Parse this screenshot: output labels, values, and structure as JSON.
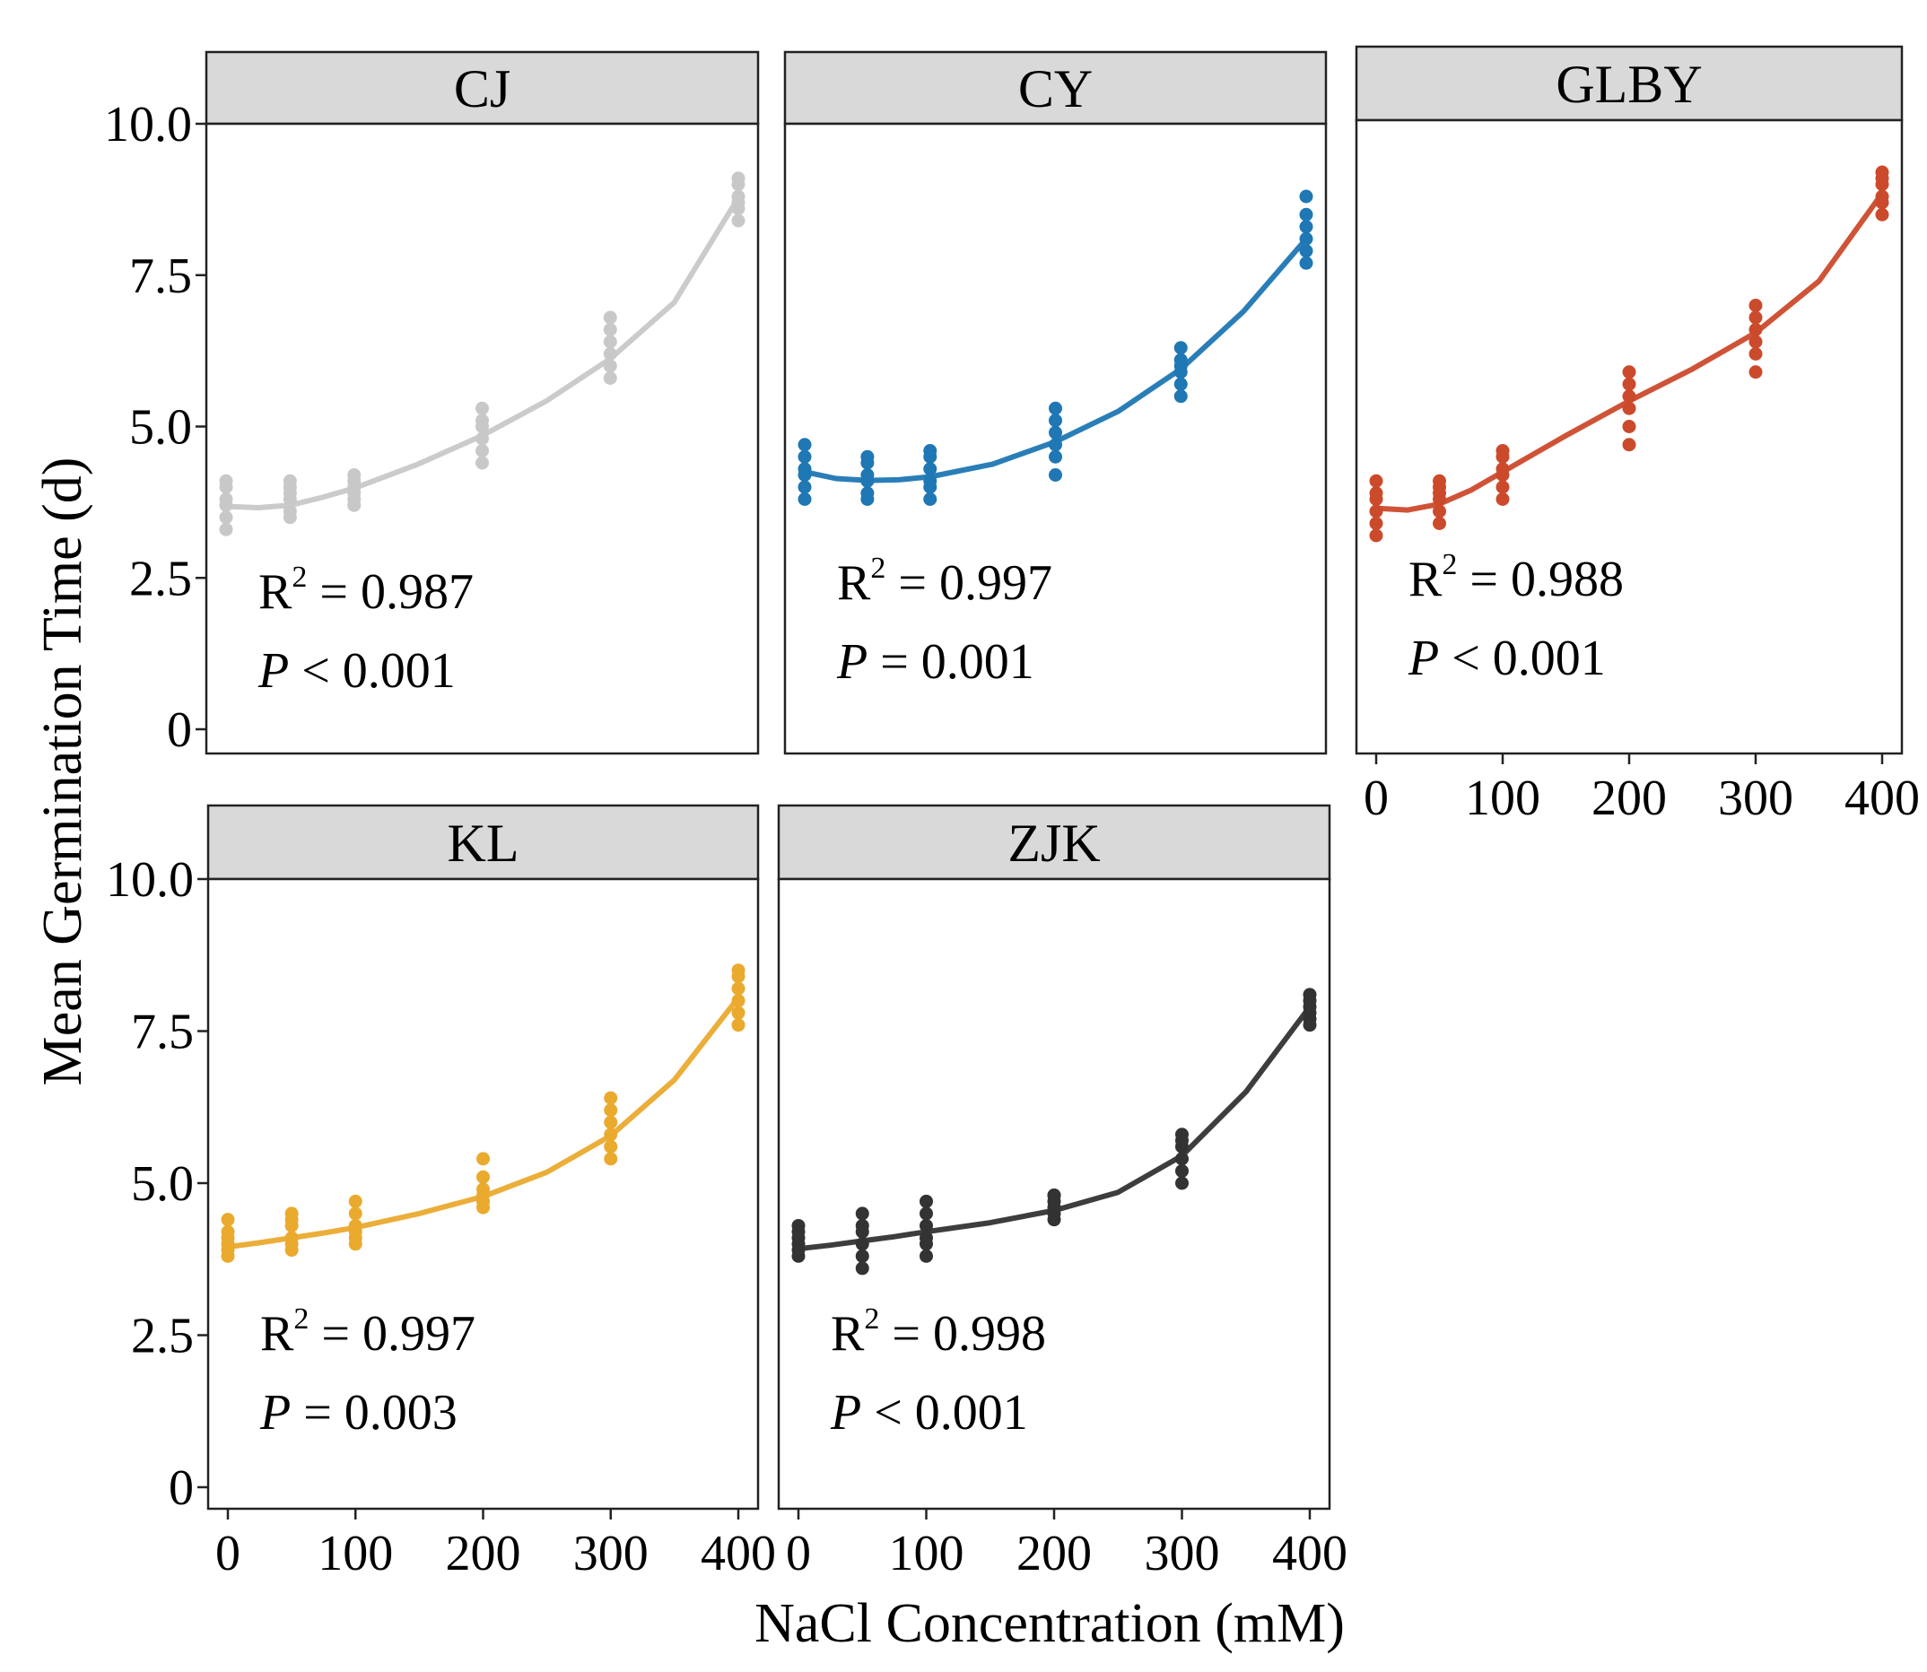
{
  "figure": {
    "xlabel": "NaCl Concentration (mM)",
    "ylabel": "Mean Germination Time (d)"
  },
  "chart_data": [
    {
      "type": "scatter",
      "panel": "CJ",
      "title": "CJ",
      "color": "#c8c8c8",
      "xlim": [
        0,
        400
      ],
      "ylim": [
        0,
        10
      ],
      "xticks": [
        0,
        100,
        200,
        300,
        400
      ],
      "yticks": [
        0,
        2.5,
        5.0,
        7.5,
        10.0
      ],
      "ytick_labels": [
        "0",
        "2.5",
        "5.0",
        "7.5",
        "10.0"
      ],
      "x": [
        0,
        50,
        100,
        200,
        300,
        400
      ],
      "points": [
        [
          3.3,
          3.5,
          3.7,
          3.8,
          4.0,
          4.1
        ],
        [
          3.5,
          3.6,
          3.8,
          3.9,
          4.0,
          4.1
        ],
        [
          3.7,
          3.8,
          3.9,
          4.0,
          4.1,
          4.2
        ],
        [
          4.4,
          4.6,
          4.8,
          5.0,
          5.1,
          5.3
        ],
        [
          5.8,
          6.0,
          6.2,
          6.4,
          6.6,
          6.8
        ],
        [
          8.4,
          8.6,
          8.7,
          8.8,
          9.0,
          9.1
        ]
      ],
      "fit": [
        [
          0,
          3.68
        ],
        [
          25,
          3.66
        ],
        [
          50,
          3.7
        ],
        [
          75,
          3.83
        ],
        [
          100,
          3.98
        ],
        [
          150,
          4.38
        ],
        [
          200,
          4.85
        ],
        [
          250,
          5.42
        ],
        [
          300,
          6.12
        ],
        [
          350,
          7.05
        ],
        [
          400,
          8.78
        ]
      ],
      "r2_label": "R",
      "r2_value": "= 0.987",
      "p_label": "P",
      "p_value": "< 0.001"
    },
    {
      "type": "scatter",
      "panel": "CY",
      "title": "CY",
      "color": "#1f77b4",
      "xlim": [
        0,
        400
      ],
      "ylim": [
        0,
        10
      ],
      "xticks": [
        0,
        100,
        200,
        300,
        400
      ],
      "x": [
        0,
        50,
        100,
        200,
        300,
        400
      ],
      "points": [
        [
          3.8,
          4.0,
          4.2,
          4.3,
          4.5,
          4.7
        ],
        [
          3.8,
          3.9,
          4.1,
          4.2,
          4.4,
          4.5
        ],
        [
          3.8,
          4.0,
          4.1,
          4.3,
          4.5,
          4.6
        ],
        [
          4.2,
          4.5,
          4.7,
          4.9,
          5.1,
          5.3
        ],
        [
          5.5,
          5.7,
          5.9,
          6.0,
          6.1,
          6.3
        ],
        [
          7.7,
          7.9,
          8.1,
          8.3,
          8.5,
          8.8
        ]
      ],
      "fit": [
        [
          0,
          4.25
        ],
        [
          25,
          4.14
        ],
        [
          50,
          4.11
        ],
        [
          75,
          4.12
        ],
        [
          100,
          4.17
        ],
        [
          150,
          4.38
        ],
        [
          200,
          4.75
        ],
        [
          250,
          5.25
        ],
        [
          300,
          5.95
        ],
        [
          350,
          6.9
        ],
        [
          400,
          8.1
        ]
      ],
      "r2_label": "R",
      "r2_value": "= 0.997",
      "p_label": "P",
      "p_value": "= 0.001"
    },
    {
      "type": "scatter",
      "panel": "GLBY",
      "title": "GLBY",
      "color": "#cc4a2c",
      "xlim": [
        0,
        400
      ],
      "ylim": [
        0,
        10
      ],
      "xticks": [
        0,
        100,
        200,
        300,
        400
      ],
      "xtick_labels": [
        "0",
        "100",
        "200",
        "300",
        "400"
      ],
      "x": [
        0,
        50,
        100,
        200,
        300,
        400
      ],
      "points": [
        [
          3.2,
          3.4,
          3.6,
          3.8,
          3.9,
          4.1
        ],
        [
          3.4,
          3.6,
          3.8,
          3.9,
          4.0,
          4.1
        ],
        [
          3.8,
          4.0,
          4.2,
          4.3,
          4.5,
          4.6
        ],
        [
          4.7,
          5.0,
          5.3,
          5.5,
          5.7,
          5.9
        ],
        [
          5.9,
          6.2,
          6.4,
          6.6,
          6.8,
          7.0
        ],
        [
          8.5,
          8.7,
          8.8,
          9.0,
          9.1,
          9.2
        ]
      ],
      "fit": [
        [
          0,
          3.65
        ],
        [
          25,
          3.62
        ],
        [
          50,
          3.72
        ],
        [
          75,
          3.95
        ],
        [
          100,
          4.25
        ],
        [
          150,
          4.85
        ],
        [
          200,
          5.42
        ],
        [
          250,
          5.95
        ],
        [
          300,
          6.55
        ],
        [
          350,
          7.4
        ],
        [
          400,
          8.85
        ]
      ],
      "r2_label": "R",
      "r2_value": "= 0.988",
      "p_label": "P",
      "p_value": "< 0.001"
    },
    {
      "type": "scatter",
      "panel": "KL",
      "title": "KL",
      "color": "#eaaa2e",
      "xlim": [
        0,
        400
      ],
      "ylim": [
        0,
        10
      ],
      "xticks": [
        0,
        100,
        200,
        300,
        400
      ],
      "xtick_labels": [
        "0",
        "100",
        "200",
        "300",
        "400"
      ],
      "yticks": [
        0,
        2.5,
        5.0,
        7.5,
        10.0
      ],
      "ytick_labels": [
        "0",
        "2.5",
        "5.0",
        "7.5",
        "10.0"
      ],
      "x": [
        0,
        50,
        100,
        200,
        300,
        400
      ],
      "points": [
        [
          3.8,
          3.9,
          4.0,
          4.1,
          4.2,
          4.4
        ],
        [
          3.9,
          4.0,
          4.1,
          4.3,
          4.4,
          4.5
        ],
        [
          4.0,
          4.1,
          4.2,
          4.3,
          4.5,
          4.7
        ],
        [
          4.6,
          4.7,
          4.8,
          4.9,
          5.1,
          5.4
        ],
        [
          5.4,
          5.6,
          5.8,
          6.0,
          6.2,
          6.4
        ],
        [
          7.6,
          7.8,
          8.0,
          8.2,
          8.4,
          8.5
        ]
      ],
      "fit": [
        [
          0,
          3.95
        ],
        [
          25,
          4.02
        ],
        [
          50,
          4.1
        ],
        [
          75,
          4.18
        ],
        [
          100,
          4.27
        ],
        [
          150,
          4.5
        ],
        [
          200,
          4.78
        ],
        [
          250,
          5.18
        ],
        [
          300,
          5.78
        ],
        [
          350,
          6.7
        ],
        [
          400,
          8.05
        ]
      ],
      "r2_label": "R",
      "r2_value": "= 0.997",
      "p_label": "P",
      "p_value": "= 0.003"
    },
    {
      "type": "scatter",
      "panel": "ZJK",
      "title": "ZJK",
      "color": "#333333",
      "xlim": [
        0,
        400
      ],
      "ylim": [
        0,
        10
      ],
      "xticks": [
        0,
        100,
        200,
        300,
        400
      ],
      "xtick_labels": [
        "0",
        "100",
        "200",
        "300",
        "400"
      ],
      "x": [
        0,
        50,
        100,
        200,
        300,
        400
      ],
      "points": [
        [
          3.8,
          3.9,
          4.0,
          4.1,
          4.2,
          4.3
        ],
        [
          3.6,
          3.8,
          4.0,
          4.2,
          4.3,
          4.5
        ],
        [
          3.8,
          4.0,
          4.1,
          4.3,
          4.5,
          4.7
        ],
        [
          4.4,
          4.5,
          4.6,
          4.7,
          4.8,
          4.8
        ],
        [
          5.0,
          5.2,
          5.4,
          5.6,
          5.7,
          5.8
        ],
        [
          7.6,
          7.7,
          7.8,
          7.9,
          8.0,
          8.1
        ]
      ],
      "fit": [
        [
          0,
          3.92
        ],
        [
          25,
          3.98
        ],
        [
          50,
          4.05
        ],
        [
          75,
          4.12
        ],
        [
          100,
          4.2
        ],
        [
          150,
          4.35
        ],
        [
          200,
          4.55
        ],
        [
          250,
          4.85
        ],
        [
          300,
          5.45
        ],
        [
          350,
          6.5
        ],
        [
          400,
          7.9
        ]
      ],
      "r2_label": "R",
      "r2_value": "= 0.998",
      "p_label": "P",
      "p_value": "< 0.001"
    }
  ]
}
